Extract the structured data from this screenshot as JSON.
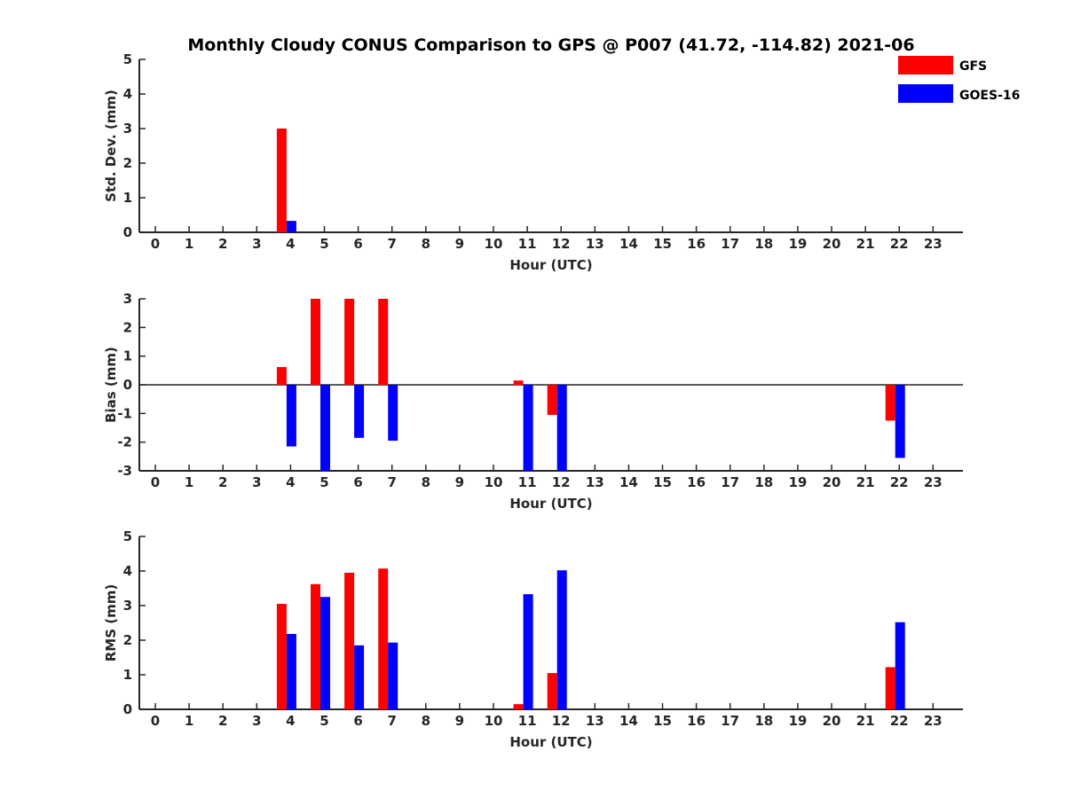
{
  "chart_data": {
    "type": "bar",
    "title": "Monthly Cloudy CONUS Comparison to GPS @ P007 (41.72, -114.82) 2021-06",
    "legend": {
      "placement": "top-right",
      "entries": [
        {
          "name": "GFS",
          "color": "#ff0000"
        },
        {
          "name": "GOES-16",
          "color": "#0000ff"
        }
      ]
    },
    "categories": [
      "0",
      "1",
      "2",
      "3",
      "4",
      "5",
      "6",
      "7",
      "8",
      "9",
      "10",
      "11",
      "12",
      "13",
      "14",
      "15",
      "16",
      "17",
      "18",
      "19",
      "20",
      "21",
      "22",
      "23"
    ],
    "panels": [
      {
        "ylabel": "Std. Dev. (mm)",
        "xlabel": "Hour (UTC)",
        "ylim": [
          0,
          5
        ],
        "yticks": [
          "0",
          "1",
          "2",
          "3",
          "4",
          "5"
        ],
        "series": [
          {
            "name": "GFS",
            "color": "#ff0000",
            "values": [
              0,
              0,
              0,
              0,
              3.0,
              0,
              0,
              0,
              0,
              0,
              0,
              0,
              0,
              0,
              0,
              0,
              0,
              0,
              0,
              0,
              0,
              0,
              0,
              0
            ]
          },
          {
            "name": "GOES-16",
            "color": "#0000ff",
            "values": [
              0,
              0,
              0,
              0,
              0.33,
              0,
              0,
              0,
              0,
              0,
              0,
              0,
              0,
              0,
              0,
              0,
              0,
              0,
              0,
              0,
              0,
              0,
              0,
              0
            ]
          }
        ]
      },
      {
        "ylabel": "Bias (mm)",
        "xlabel": "Hour (UTC)",
        "ylim": [
          -3,
          3
        ],
        "yticks": [
          "-3",
          "-2",
          "-1",
          "0",
          "1",
          "2",
          "3"
        ],
        "series": [
          {
            "name": "GFS",
            "color": "#ff0000",
            "values": [
              0,
              0,
              0,
              0,
              0.62,
              3.0,
              3.0,
              3.0,
              0,
              0,
              0,
              0.15,
              -1.05,
              0,
              0,
              0,
              0,
              0,
              0,
              0,
              0,
              0,
              -1.25,
              0
            ]
          },
          {
            "name": "GOES-16",
            "color": "#0000ff",
            "values": [
              0,
              0,
              0,
              0,
              -2.15,
              -3.0,
              -1.85,
              -1.95,
              0,
              0,
              0,
              -3.0,
              -3.0,
              0,
              0,
              0,
              0,
              0,
              0,
              0,
              0,
              0,
              -2.55,
              0
            ]
          }
        ]
      },
      {
        "ylabel": "RMS (mm)",
        "xlabel": "Hour (UTC)",
        "ylim": [
          0,
          5
        ],
        "yticks": [
          "0",
          "1",
          "2",
          "3",
          "4",
          "5"
        ],
        "series": [
          {
            "name": "GFS",
            "color": "#ff0000",
            "values": [
              0,
              0,
              0,
              0,
              3.05,
              3.62,
              3.95,
              4.07,
              0,
              0,
              0,
              0.15,
              1.05,
              0,
              0,
              0,
              0,
              0,
              0,
              0,
              0,
              0,
              1.22,
              0
            ]
          },
          {
            "name": "GOES-16",
            "color": "#0000ff",
            "values": [
              0,
              0,
              0,
              0,
              2.18,
              3.25,
              1.85,
              1.93,
              0,
              0,
              0,
              3.33,
              4.02,
              0,
              0,
              0,
              0,
              0,
              0,
              0,
              0,
              0,
              2.52,
              0
            ]
          }
        ]
      }
    ]
  }
}
